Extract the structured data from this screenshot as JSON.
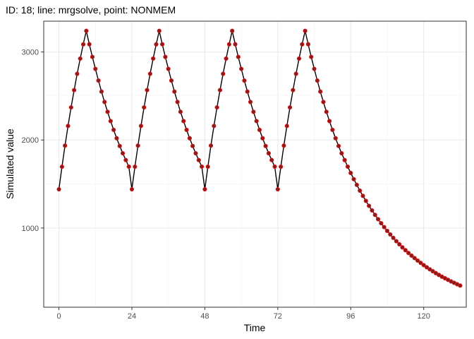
{
  "chart_data": {
    "type": "line",
    "title": "ID: 18; line: mrgsolve, point: NONMEM",
    "xlabel": "Time",
    "ylabel": "Simulated value",
    "xlim": [
      -5,
      134
    ],
    "ylim": [
      100,
      3350
    ],
    "xticks": [
      0,
      24,
      48,
      72,
      96,
      120
    ],
    "yticks": [
      1000,
      2000,
      3000
    ],
    "xminor": [
      12,
      36,
      60,
      84,
      108,
      132
    ],
    "yminor": [
      1500,
      2500
    ],
    "grid": true,
    "line_color": "#000000",
    "point_fill": "#8b1a1a",
    "point_color": "#e41a1c",
    "dose_times": [
      0,
      24,
      48,
      72
    ],
    "infusion_hours": 9,
    "series": [
      {
        "name": "mrgsolve",
        "style": "line",
        "x": [
          0,
          1,
          2,
          3,
          4,
          5,
          6,
          7,
          8,
          9,
          10,
          11,
          12,
          13,
          14,
          15,
          16,
          17,
          18,
          19,
          20,
          21,
          22,
          23,
          24,
          25,
          26,
          27,
          28,
          29,
          30,
          31,
          32,
          33,
          34,
          35,
          36,
          37,
          38,
          39,
          40,
          41,
          42,
          43,
          44,
          45,
          46,
          47,
          48,
          49,
          50,
          51,
          52,
          53,
          54,
          55,
          56,
          57,
          58,
          59,
          60,
          61,
          62,
          63,
          64,
          65,
          66,
          67,
          68,
          69,
          70,
          71,
          72,
          73,
          74,
          75,
          76,
          77,
          78,
          79,
          80,
          81,
          82,
          83,
          84,
          85,
          86,
          87,
          88,
          89,
          90,
          91,
          92,
          93,
          94,
          95,
          96,
          97,
          98,
          99,
          100,
          101,
          102,
          103,
          104,
          105,
          106,
          107,
          108,
          109,
          110,
          111,
          112,
          113,
          114,
          115,
          116,
          117,
          118,
          119,
          120,
          121,
          122,
          123,
          124,
          125,
          126,
          127,
          128,
          129,
          130,
          131,
          132
        ],
        "y": [
          1440,
          1696,
          1936,
          2160,
          2370,
          2567,
          2752,
          2925,
          3087,
          3240,
          3088,
          2944,
          2808,
          2675,
          2550,
          2432,
          2320,
          2215,
          2115,
          2020,
          1932,
          1849,
          1772,
          1697,
          1440,
          1696,
          1936,
          2160,
          2370,
          2567,
          2752,
          2925,
          3087,
          3240,
          3088,
          2944,
          2808,
          2675,
          2550,
          2432,
          2320,
          2215,
          2115,
          2020,
          1932,
          1849,
          1772,
          1697,
          1440,
          1696,
          1936,
          2160,
          2370,
          2567,
          2752,
          2925,
          3087,
          3240,
          3088,
          2944,
          2808,
          2675,
          2550,
          2432,
          2320,
          2215,
          2115,
          2020,
          1932,
          1849,
          1772,
          1697,
          1440,
          1696,
          1936,
          2160,
          2370,
          2567,
          2752,
          2925,
          3087,
          3240,
          3088,
          2944,
          2808,
          2675,
          2550,
          2432,
          2320,
          2215,
          2115,
          2020,
          1932,
          1849,
          1772,
          1697,
          1625,
          1555,
          1490,
          1425,
          1365,
          1308,
          1252,
          1200,
          1149,
          1100,
          1054,
          1010,
          967,
          927,
          888,
          850,
          815,
          780,
          748,
          716,
          686,
          658,
          630,
          604,
          578,
          554,
          531,
          509,
          487,
          467,
          447,
          429,
          411,
          393,
          377,
          361,
          346
        ]
      },
      {
        "name": "NONMEM",
        "style": "points",
        "x": [
          0,
          1,
          2,
          3,
          4,
          5,
          6,
          7,
          8,
          9,
          10,
          11,
          12,
          13,
          14,
          15,
          16,
          17,
          18,
          19,
          20,
          21,
          22,
          23,
          24,
          25,
          26,
          27,
          28,
          29,
          30,
          31,
          32,
          33,
          34,
          35,
          36,
          37,
          38,
          39,
          40,
          41,
          42,
          43,
          44,
          45,
          46,
          47,
          48,
          49,
          50,
          51,
          52,
          53,
          54,
          55,
          56,
          57,
          58,
          59,
          60,
          61,
          62,
          63,
          64,
          65,
          66,
          67,
          68,
          69,
          70,
          71,
          72,
          73,
          74,
          75,
          76,
          77,
          78,
          79,
          80,
          81,
          82,
          83,
          84,
          85,
          86,
          87,
          88,
          89,
          90,
          91,
          92,
          93,
          94,
          95,
          96,
          97,
          98,
          99,
          100,
          101,
          102,
          103,
          104,
          105,
          106,
          107,
          108,
          109,
          110,
          111,
          112,
          113,
          114,
          115,
          116,
          117,
          118,
          119,
          120,
          121,
          122,
          123,
          124,
          125,
          126,
          127,
          128,
          129,
          130,
          131,
          132
        ],
        "y": [
          1440,
          1696,
          1936,
          2160,
          2370,
          2567,
          2752,
          2925,
          3087,
          3240,
          3088,
          2944,
          2808,
          2675,
          2550,
          2432,
          2320,
          2215,
          2115,
          2020,
          1932,
          1849,
          1772,
          1697,
          1440,
          1696,
          1936,
          2160,
          2370,
          2567,
          2752,
          2925,
          3087,
          3240,
          3088,
          2944,
          2808,
          2675,
          2550,
          2432,
          2320,
          2215,
          2115,
          2020,
          1932,
          1849,
          1772,
          1697,
          1440,
          1696,
          1936,
          2160,
          2370,
          2567,
          2752,
          2925,
          3087,
          3240,
          3088,
          2944,
          2808,
          2675,
          2550,
          2432,
          2320,
          2215,
          2115,
          2020,
          1932,
          1849,
          1772,
          1697,
          1440,
          1696,
          1936,
          2160,
          2370,
          2567,
          2752,
          2925,
          3087,
          3240,
          3088,
          2944,
          2808,
          2675,
          2550,
          2432,
          2320,
          2215,
          2115,
          2020,
          1932,
          1849,
          1772,
          1697,
          1625,
          1555,
          1490,
          1425,
          1365,
          1308,
          1252,
          1200,
          1149,
          1100,
          1054,
          1010,
          967,
          927,
          888,
          850,
          815,
          780,
          748,
          716,
          686,
          658,
          630,
          604,
          578,
          554,
          531,
          509,
          487,
          467,
          447,
          429,
          411,
          393,
          377,
          361,
          346
        ]
      }
    ]
  }
}
